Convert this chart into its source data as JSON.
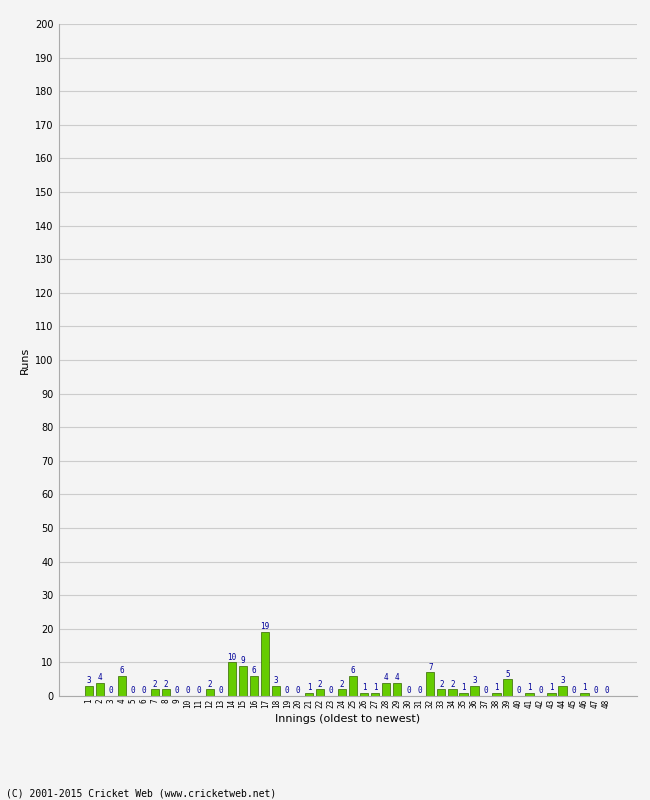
{
  "values": [
    3,
    4,
    0,
    6,
    0,
    0,
    2,
    2,
    0,
    0,
    0,
    2,
    0,
    10,
    9,
    6,
    19,
    3,
    0,
    0,
    1,
    2,
    0,
    2,
    6,
    1,
    1,
    4,
    4,
    0,
    0,
    7,
    2,
    2,
    1,
    3,
    0,
    1,
    5,
    0,
    1,
    0,
    1,
    3,
    0,
    1,
    0,
    0
  ],
  "labels": [
    "1",
    "2",
    "3",
    "4",
    "5",
    "6",
    "7",
    "8",
    "9",
    "10",
    "11",
    "12",
    "13",
    "14",
    "15",
    "16",
    "17",
    "18",
    "19",
    "20",
    "21",
    "22",
    "23",
    "24",
    "25",
    "26",
    "27",
    "28",
    "29",
    "30",
    "31",
    "32",
    "33",
    "34",
    "35",
    "36",
    "37",
    "38",
    "39",
    "40",
    "41",
    "42",
    "43",
    "44",
    "45",
    "46",
    "47",
    "48"
  ],
  "bar_color": "#66cc00",
  "bar_edge_color": "#336600",
  "label_color": "#000099",
  "ylabel": "Runs",
  "xlabel": "Innings (oldest to newest)",
  "ylim": [
    0,
    200
  ],
  "yticks": [
    0,
    10,
    20,
    30,
    40,
    50,
    60,
    70,
    80,
    90,
    100,
    110,
    120,
    130,
    140,
    150,
    160,
    170,
    180,
    190,
    200
  ],
  "background_color": "#f4f4f4",
  "plot_bg_color": "#f4f4f4",
  "grid_color": "#cccccc",
  "footer": "(C) 2001-2015 Cricket Web (www.cricketweb.net)"
}
